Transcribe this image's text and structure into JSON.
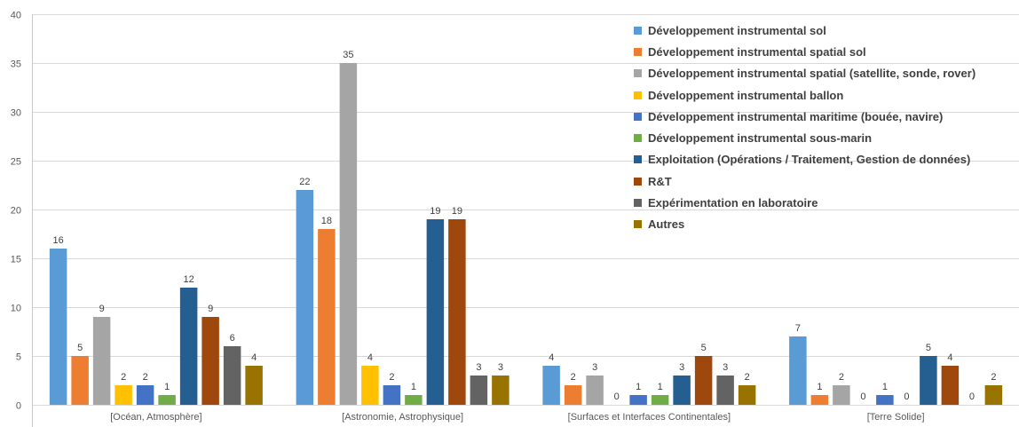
{
  "chart_data": {
    "type": "bar",
    "categories": [
      "[Océan, Atmosphère]",
      "[Astronomie, Astrophysique]",
      "[Surfaces et Interfaces Continentales]",
      "[Terre Solide]"
    ],
    "ylim": [
      0,
      40
    ],
    "yticks": [
      "0",
      "5",
      "10",
      "15",
      "20",
      "25",
      "30",
      "35",
      "40"
    ],
    "grid": true,
    "legend_position": "top-right",
    "series": [
      {
        "name": "Développement instrumental sol",
        "color": "#5B9BD5",
        "values": [
          16,
          22,
          4,
          7
        ]
      },
      {
        "name": "Développement instrumental spatial sol",
        "color": "#ED7D31",
        "values": [
          5,
          18,
          2,
          1
        ]
      },
      {
        "name": "Développement instrumental spatial (satellite, sonde, rover)",
        "color": "#A5A5A5",
        "values": [
          9,
          35,
          3,
          2
        ]
      },
      {
        "name": "Développement instrumental ballon",
        "color": "#FFC000",
        "values": [
          2,
          4,
          0,
          0
        ]
      },
      {
        "name": "Développement instrumental maritime (bouée, navire)",
        "color": "#4472C4",
        "values": [
          2,
          2,
          1,
          1
        ]
      },
      {
        "name": "Développement instrumental sous-marin",
        "color": "#70AD47",
        "values": [
          1,
          1,
          1,
          0
        ]
      },
      {
        "name": "Exploitation (Opérations / Traitement, Gestion de données)",
        "color": "#255E91",
        "values": [
          12,
          19,
          3,
          5
        ]
      },
      {
        "name": "R&T",
        "color": "#9E480E",
        "values": [
          9,
          19,
          5,
          4
        ]
      },
      {
        "name": "Expérimentation en laboratoire",
        "color": "#636363",
        "values": [
          6,
          3,
          3,
          0
        ]
      },
      {
        "name": "Autres",
        "color": "#997300",
        "values": [
          4,
          3,
          2,
          2
        ]
      }
    ]
  }
}
